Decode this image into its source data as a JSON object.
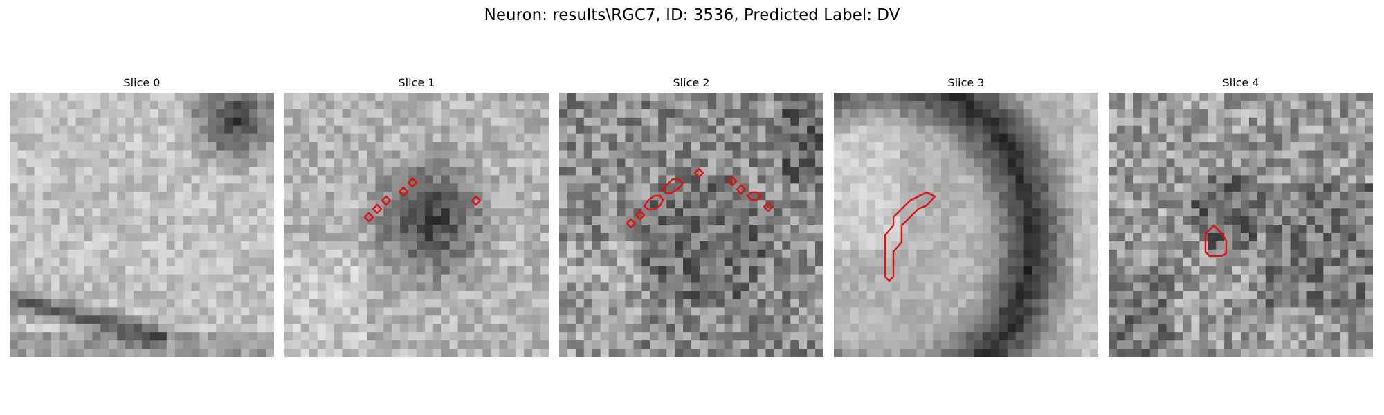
{
  "figure": {
    "title": "Neuron: results\\RGC7, ID: 3536, Predicted Label: DV"
  },
  "panels": [
    {
      "title": "Slice 0",
      "tone": "bright",
      "has_contour": false
    },
    {
      "title": "Slice 1",
      "tone": "dark-center",
      "has_contour": true
    },
    {
      "title": "Slice 2",
      "tone": "noisy-dark",
      "has_contour": true
    },
    {
      "title": "Slice 3",
      "tone": "dark-arc",
      "has_contour": true
    },
    {
      "title": "Slice 4",
      "tone": "noisy-mixed",
      "has_contour": true
    }
  ],
  "colors": {
    "contour": "#e01010",
    "background": "#ffffff"
  },
  "image": {
    "grid": 32,
    "colormap": "gray"
  }
}
